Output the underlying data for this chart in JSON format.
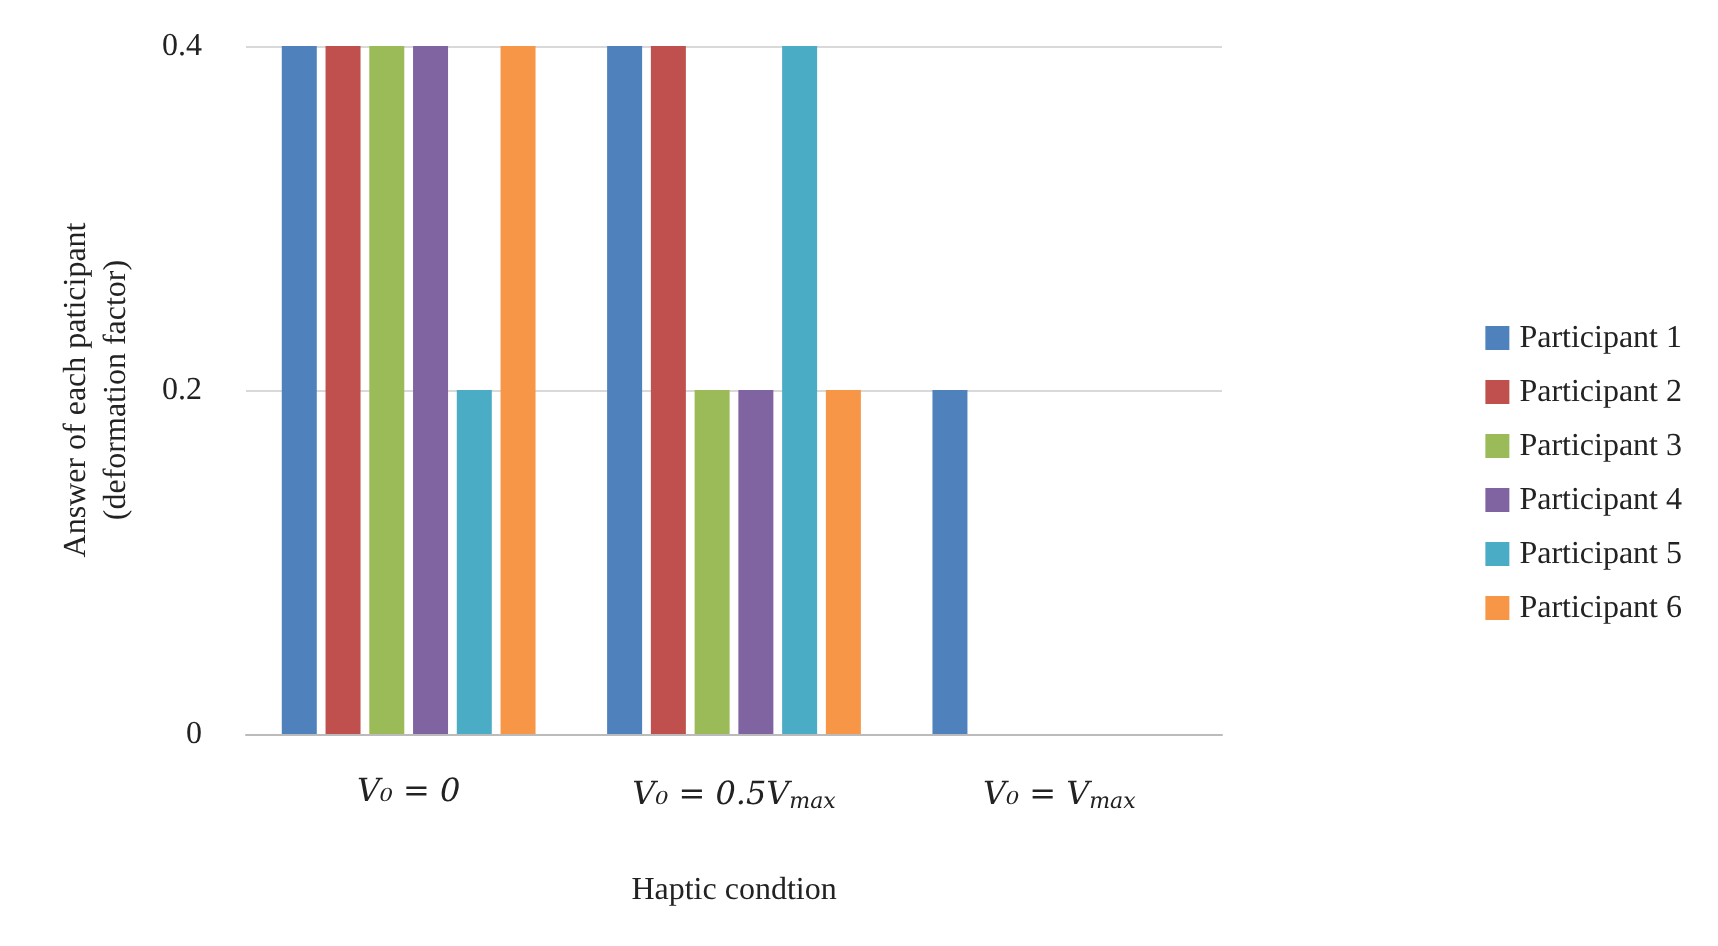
{
  "chart_data": {
    "type": "bar",
    "xlabel": "Haptic condtion",
    "ylabel": "Answer of each paticipant\n(deformation factor)",
    "categories": [
      "V₀ = 0",
      "V₀ = 0.5V$_{max}$",
      "V₀ = V$_{max}$"
    ],
    "series": [
      {
        "name": "Participant 1",
        "color": "#4f81bd",
        "values": [
          0.4,
          0.4,
          0.2
        ]
      },
      {
        "name": "Participant 2",
        "color": "#c0504d",
        "values": [
          0.4,
          0.4,
          0
        ]
      },
      {
        "name": "Participant 3",
        "color": "#9bbb59",
        "values": [
          0.4,
          0.2,
          0
        ]
      },
      {
        "name": "Participant 4",
        "color": "#8064a2",
        "values": [
          0.4,
          0.2,
          0
        ]
      },
      {
        "name": "Participant 5",
        "color": "#4bacc6",
        "values": [
          0.2,
          0.4,
          0
        ]
      },
      {
        "name": "Participant 6",
        "color": "#f79646",
        "values": [
          0.4,
          0.2,
          0
        ]
      }
    ],
    "ylim": [
      0,
      0.4
    ],
    "yticks": [
      0,
      0.2,
      0.4
    ],
    "grid": "y",
    "legend": "right"
  }
}
